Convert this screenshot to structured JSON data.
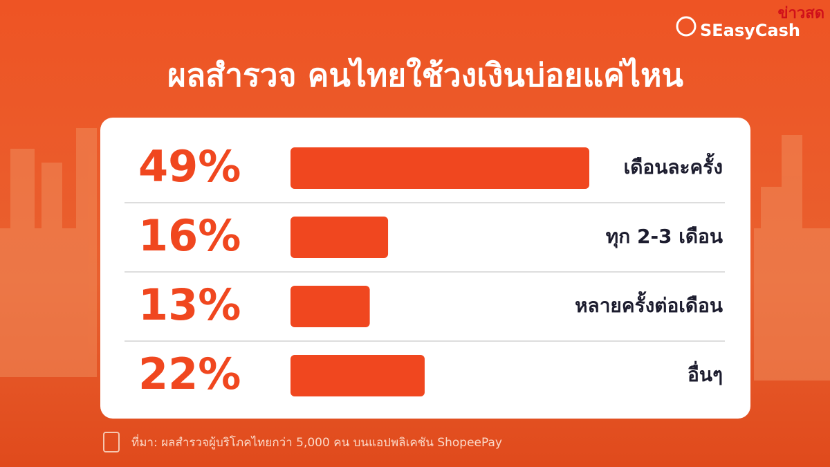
{
  "chart_data": {
    "type": "bar",
    "orientation": "horizontal",
    "title": "ผลสำรวจ คนไทยใช้วงเงินบ่อยแค่ไหน",
    "categories": [
      "เดือนละครั้ง",
      "ทุก 2-3 เดือน",
      "หลายครั้งต่อเดือน",
      "อื่นๆ"
    ],
    "values": [
      49,
      16,
      13,
      22
    ],
    "value_labels": [
      "49%",
      "16%",
      "13%",
      "22%"
    ],
    "color": "#f0471f",
    "source": "ที่มา: ผลสำรวจผู้บริโภคไทยกว่า 5,000 คน บนแอปพลิเคชัน ShopeePay",
    "logo": "SEasyCash",
    "watermark": "ข่าวสด"
  }
}
